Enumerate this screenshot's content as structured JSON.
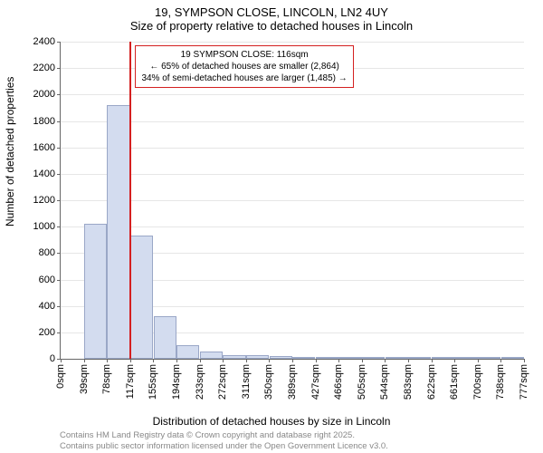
{
  "title": "19, SYMPSON CLOSE, LINCOLN, LN2 4UY",
  "subtitle": "Size of property relative to detached houses in Lincoln",
  "y_axis_label": "Number of detached properties",
  "x_axis_label": "Distribution of detached houses by size in Lincoln",
  "attribution_line1": "Contains HM Land Registry data © Crown copyright and database right 2025.",
  "attribution_line2": "Contains public sector information licensed under the Open Government Licence v3.0.",
  "chart": {
    "type": "histogram",
    "background_color": "#ffffff",
    "grid_color": "#e6e6e6",
    "axis_color": "#666666",
    "bar_fill": "#d3dcef",
    "bar_border": "#9aa7c7",
    "indicator_color": "#d42020",
    "ylim": [
      0,
      2400
    ],
    "ytick_step": 200,
    "y_ticks": [
      0,
      200,
      400,
      600,
      800,
      1000,
      1200,
      1400,
      1600,
      1800,
      2000,
      2200,
      2400
    ],
    "x_tick_labels": [
      "0sqm",
      "39sqm",
      "78sqm",
      "117sqm",
      "155sqm",
      "194sqm",
      "233sqm",
      "272sqm",
      "311sqm",
      "350sqm",
      "389sqm",
      "427sqm",
      "466sqm",
      "505sqm",
      "544sqm",
      "583sqm",
      "622sqm",
      "661sqm",
      "700sqm",
      "738sqm",
      "777sqm"
    ],
    "bar_values": [
      0,
      1020,
      1920,
      930,
      320,
      105,
      55,
      30,
      25,
      18,
      10,
      5,
      4,
      3,
      2,
      2,
      1,
      1,
      1,
      1
    ],
    "indicator_x_sqm": 116,
    "x_max_sqm": 777,
    "annotation": {
      "line1": "19 SYMPSON CLOSE: 116sqm",
      "line2": "← 65% of detached houses are smaller (2,864)",
      "line3": "34% of semi-detached houses are larger (1,485) →"
    },
    "title_fontsize": 13,
    "label_fontsize": 12,
    "tick_fontsize": 11,
    "annotation_fontsize": 10,
    "attribution_fontsize": 9.5,
    "attribution_color": "#888888"
  }
}
